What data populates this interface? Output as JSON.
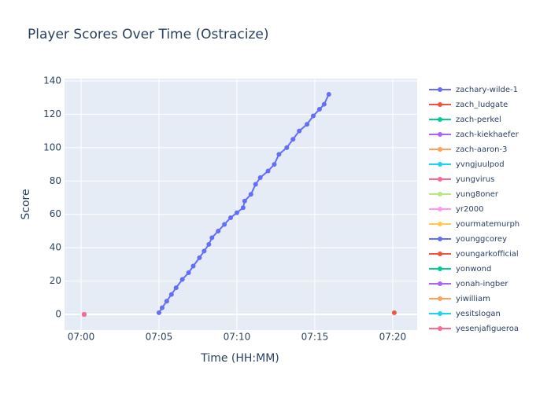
{
  "chart_data": {
    "type": "line",
    "title": "Player Scores Over Time (Ostracize)",
    "xlabel": "Time (HH:MM)",
    "ylabel": "Score",
    "xlim": [
      -1.06,
      21.57
    ],
    "ylim": [
      -9.4,
      141.4
    ],
    "xticks": [
      {
        "value": 0,
        "label": "07:00"
      },
      {
        "value": 5,
        "label": "07:05"
      },
      {
        "value": 10,
        "label": "07:10"
      },
      {
        "value": 15,
        "label": "07:15"
      },
      {
        "value": 20,
        "label": "07:20"
      }
    ],
    "yticks": [
      0,
      20,
      40,
      60,
      80,
      100,
      120,
      140
    ],
    "grid": true,
    "legend": "right",
    "series": [
      {
        "name": "zachary-wilde-1",
        "color": "#636efa",
        "x": [
          5.0,
          5.2,
          5.5,
          5.8,
          6.1,
          6.5,
          6.9,
          7.2,
          7.6,
          7.9,
          8.2,
          8.4,
          8.8,
          9.2,
          9.6,
          10.0,
          10.4,
          10.5,
          10.9,
          11.2,
          11.5,
          12.0,
          12.4,
          12.7,
          13.2,
          13.6,
          14.0,
          14.5,
          14.9,
          15.3,
          15.6,
          15.9
        ],
        "values": [
          1,
          4,
          8,
          12,
          16,
          21,
          25,
          29,
          34,
          38,
          42,
          46,
          50,
          54,
          58,
          61,
          64,
          68,
          72,
          78,
          82,
          86,
          90,
          96,
          100,
          105,
          110,
          114,
          119,
          123,
          126,
          132
        ]
      },
      {
        "name": "zach_ludgate",
        "color": "#EF553B",
        "x": [
          20.1
        ],
        "values": [
          1
        ]
      },
      {
        "name": "zach-perkel",
        "color": "#00cc96",
        "x": [
          0.2
        ],
        "values": [
          0
        ]
      },
      {
        "name": "zach-kiekhaefer",
        "color": "#ab63fa",
        "x": [
          0.2
        ],
        "values": [
          0
        ]
      },
      {
        "name": "zach-aaron-3",
        "color": "#FFA15A",
        "x": [
          0.2
        ],
        "values": [
          0
        ]
      },
      {
        "name": "yvngjuulpod",
        "color": "#19d3f3",
        "x": [
          0.2
        ],
        "values": [
          0
        ]
      },
      {
        "name": "yungvirus",
        "color": "#FF6692",
        "x": [
          0.2
        ],
        "values": [
          0
        ]
      },
      {
        "name": "yung8oner",
        "color": "#B6E880",
        "x": [
          0.2
        ],
        "values": [
          0
        ]
      },
      {
        "name": "yr2000",
        "color": "#FF97FF",
        "x": [
          0.2
        ],
        "values": [
          0
        ]
      },
      {
        "name": "yourmatemurph",
        "color": "#FECB52",
        "x": [
          0.2
        ],
        "values": [
          0
        ]
      },
      {
        "name": "younggcorey",
        "color": "#636efa",
        "x": [
          0.2
        ],
        "values": [
          0
        ]
      },
      {
        "name": "youngarkofficial",
        "color": "#EF553B",
        "x": [
          0.2
        ],
        "values": [
          0
        ]
      },
      {
        "name": "yonwond",
        "color": "#00cc96",
        "x": [
          0.2
        ],
        "values": [
          0
        ]
      },
      {
        "name": "yonah-ingber",
        "color": "#ab63fa",
        "x": [
          0.2
        ],
        "values": [
          0
        ]
      },
      {
        "name": "yiwilliam",
        "color": "#FFA15A",
        "x": [
          0.2
        ],
        "values": [
          0
        ]
      },
      {
        "name": "yesitslogan",
        "color": "#19d3f3",
        "x": [
          0.2
        ],
        "values": [
          0
        ]
      },
      {
        "name": "yesenjafigueroa",
        "color": "#FF6692",
        "x": [
          0.2
        ],
        "values": [
          0
        ]
      }
    ]
  }
}
